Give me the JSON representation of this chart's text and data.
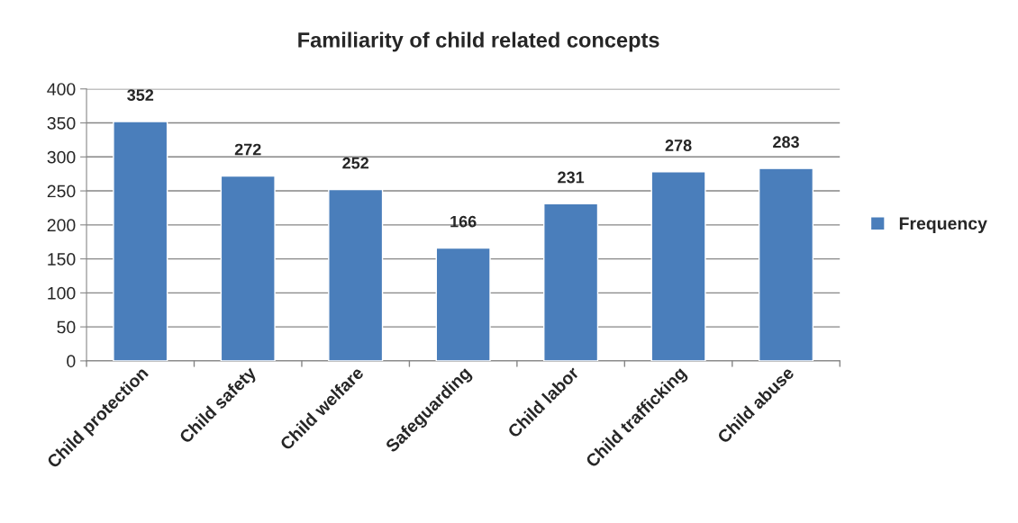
{
  "chart_data": {
    "type": "bar",
    "title": "Familiarity of child related concepts",
    "categories": [
      "Child protection",
      "Child safety",
      "Child welfare",
      "Safeguarding",
      "Child labor",
      "Child trafficking",
      "Child abuse"
    ],
    "series": [
      {
        "name": "Frequency",
        "color": "#4a7ebb",
        "values": [
          352,
          272,
          252,
          166,
          231,
          278,
          283
        ]
      }
    ],
    "ylim": [
      0,
      400
    ],
    "yticks": [
      0,
      50,
      100,
      150,
      200,
      250,
      300,
      350,
      400
    ],
    "grid": "y",
    "legend": "right",
    "data_labels": true
  }
}
